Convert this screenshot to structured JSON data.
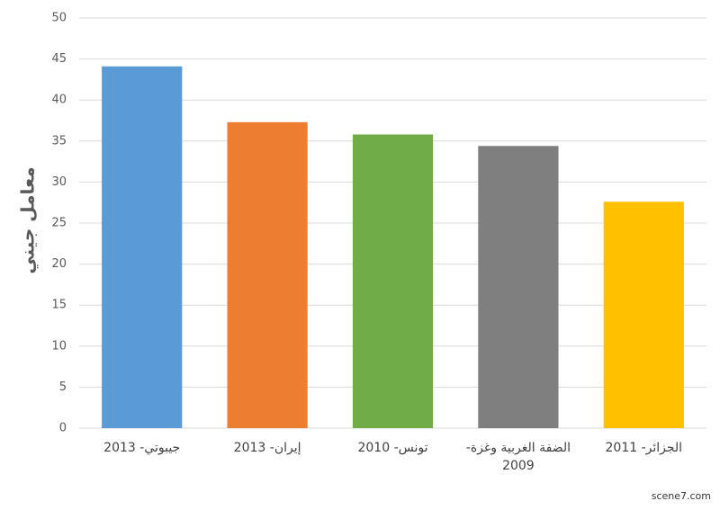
{
  "chart_data": {
    "type": "bar",
    "y_label": "معامل جيني",
    "categories": [
      "جيبوتي- 2013",
      "إيران- 2013",
      "تونس- 2010",
      "الضفة الغربية وغزة- 2009",
      "الجزائر- 2011"
    ],
    "values": [
      44.1,
      37.3,
      35.8,
      34.4,
      27.6
    ],
    "colors": [
      "#5b9bd5",
      "#ed7d31",
      "#70ad47",
      "#7f7f7f",
      "#ffc000"
    ],
    "ylim": [
      0,
      50
    ],
    "yticks": [
      0,
      5,
      10,
      15,
      20,
      25,
      30,
      35,
      40,
      45,
      50
    ],
    "grid": true,
    "watermark": "scene7.com"
  }
}
